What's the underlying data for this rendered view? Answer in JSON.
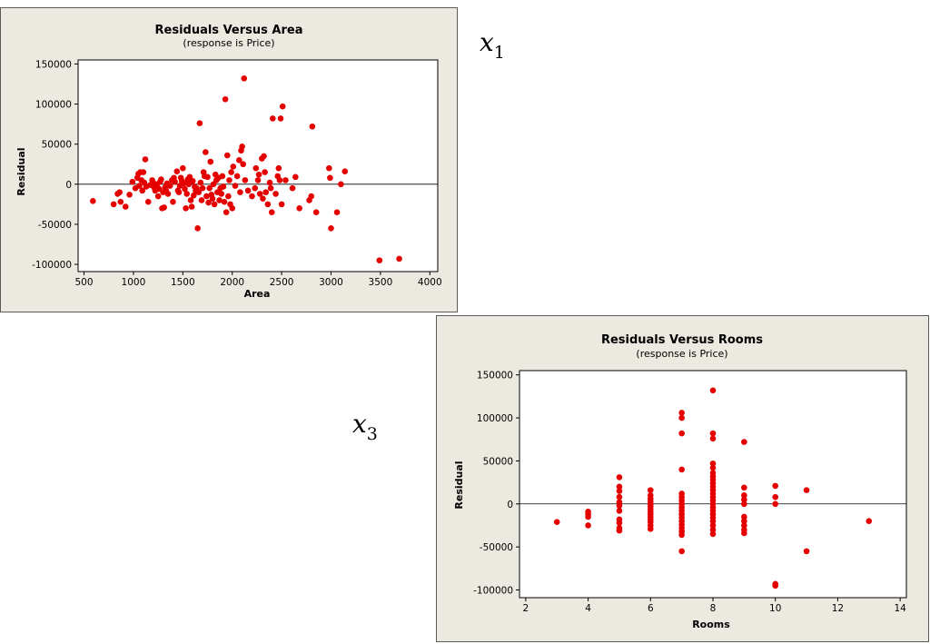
{
  "labels": {
    "x1_var": "x",
    "x1_sub": "1",
    "x3_var": "x",
    "x3_sub": "3"
  },
  "colors": {
    "point": "#e50000",
    "panel_bg": "#ece9e0",
    "plot_bg": "#ffffff"
  },
  "chart_data": [
    {
      "type": "scatter",
      "title": "Residuals Versus Area",
      "subtitle": "(response is Price)",
      "xlabel": "Area",
      "ylabel": "Residual",
      "xlim": [
        440,
        4080
      ],
      "ylim": [
        -109000,
        155000
      ],
      "xticks": [
        500,
        1000,
        1500,
        2000,
        2500,
        3000,
        3500,
        4000
      ],
      "yticks": [
        -100000,
        -50000,
        0,
        50000,
        100000,
        150000
      ],
      "reference_line_y": 0,
      "grid": false,
      "points": [
        [
          590,
          -21000
        ],
        [
          800,
          -25000
        ],
        [
          840,
          -12000
        ],
        [
          860,
          -10000
        ],
        [
          870,
          -22000
        ],
        [
          920,
          -28000
        ],
        [
          960,
          -13000
        ],
        [
          990,
          3000
        ],
        [
          1020,
          -5000
        ],
        [
          1040,
          8000
        ],
        [
          1050,
          13000
        ],
        [
          1060,
          -2000
        ],
        [
          1070,
          15000
        ],
        [
          1080,
          5000
        ],
        [
          1090,
          -8000
        ],
        [
          1100,
          15000
        ],
        [
          1110,
          2000
        ],
        [
          1120,
          31000
        ],
        [
          1130,
          -3000
        ],
        [
          1150,
          -22000
        ],
        [
          1170,
          -1000
        ],
        [
          1190,
          5000
        ],
        [
          1200,
          2000
        ],
        [
          1210,
          -4000
        ],
        [
          1220,
          -8000
        ],
        [
          1240,
          0
        ],
        [
          1250,
          -15000
        ],
        [
          1260,
          -6000
        ],
        [
          1270,
          3000
        ],
        [
          1280,
          6000
        ],
        [
          1290,
          -30000
        ],
        [
          1300,
          -10000
        ],
        [
          1310,
          -29000
        ],
        [
          1320,
          -4000
        ],
        [
          1330,
          -8000
        ],
        [
          1340,
          1000
        ],
        [
          1350,
          -12000
        ],
        [
          1370,
          -2000
        ],
        [
          1390,
          5000
        ],
        [
          1400,
          -22000
        ],
        [
          1410,
          8000
        ],
        [
          1420,
          3000
        ],
        [
          1440,
          16000
        ],
        [
          1450,
          -8000
        ],
        [
          1460,
          -10000
        ],
        [
          1470,
          -2000
        ],
        [
          1480,
          8000
        ],
        [
          1490,
          4000
        ],
        [
          1500,
          20000
        ],
        [
          1510,
          1000
        ],
        [
          1520,
          -6000
        ],
        [
          1530,
          -30000
        ],
        [
          1540,
          -12000
        ],
        [
          1550,
          6000
        ],
        [
          1560,
          0
        ],
        [
          1570,
          9000
        ],
        [
          1580,
          -20000
        ],
        [
          1590,
          -28000
        ],
        [
          1600,
          4000
        ],
        [
          1610,
          -14000
        ],
        [
          1620,
          -3000
        ],
        [
          1630,
          -8000
        ],
        [
          1640,
          -5000
        ],
        [
          1650,
          -55000
        ],
        [
          1660,
          -10000
        ],
        [
          1670,
          76000
        ],
        [
          1680,
          2000
        ],
        [
          1690,
          -20000
        ],
        [
          1700,
          -5000
        ],
        [
          1710,
          15000
        ],
        [
          1720,
          10000
        ],
        [
          1730,
          40000
        ],
        [
          1740,
          -15000
        ],
        [
          1750,
          9000
        ],
        [
          1760,
          -23000
        ],
        [
          1770,
          -5000
        ],
        [
          1780,
          28000
        ],
        [
          1790,
          -13000
        ],
        [
          1800,
          -18000
        ],
        [
          1810,
          0
        ],
        [
          1820,
          -25000
        ],
        [
          1830,
          12000
        ],
        [
          1840,
          5000
        ],
        [
          1850,
          -10000
        ],
        [
          1860,
          8000
        ],
        [
          1870,
          -20000
        ],
        [
          1880,
          -5000
        ],
        [
          1890,
          -12000
        ],
        [
          1900,
          10000
        ],
        [
          1910,
          -3000
        ],
        [
          1920,
          -22000
        ],
        [
          1930,
          106000
        ],
        [
          1940,
          -35000
        ],
        [
          1950,
          36000
        ],
        [
          1960,
          -15000
        ],
        [
          1970,
          5000
        ],
        [
          1980,
          -25000
        ],
        [
          1990,
          15000
        ],
        [
          2000,
          -30000
        ],
        [
          2010,
          22000
        ],
        [
          2030,
          -2000
        ],
        [
          2050,
          10000
        ],
        [
          2070,
          30000
        ],
        [
          2080,
          -10000
        ],
        [
          2090,
          42000
        ],
        [
          2100,
          47000
        ],
        [
          2110,
          25000
        ],
        [
          2120,
          132000
        ],
        [
          2130,
          5000
        ],
        [
          2160,
          -8000
        ],
        [
          2200,
          -15000
        ],
        [
          2230,
          -5000
        ],
        [
          2240,
          20000
        ],
        [
          2260,
          5000
        ],
        [
          2270,
          12000
        ],
        [
          2280,
          -12000
        ],
        [
          2300,
          32000
        ],
        [
          2310,
          -18000
        ],
        [
          2320,
          35000
        ],
        [
          2330,
          15000
        ],
        [
          2340,
          -10000
        ],
        [
          2360,
          -25000
        ],
        [
          2380,
          2000
        ],
        [
          2390,
          -5000
        ],
        [
          2400,
          -35000
        ],
        [
          2410,
          82000
        ],
        [
          2440,
          -12000
        ],
        [
          2460,
          10000
        ],
        [
          2470,
          20000
        ],
        [
          2480,
          5000
        ],
        [
          2490,
          82000
        ],
        [
          2500,
          -25000
        ],
        [
          2510,
          97000
        ],
        [
          2540,
          5000
        ],
        [
          2610,
          -5000
        ],
        [
          2640,
          9000
        ],
        [
          2680,
          -30000
        ],
        [
          2780,
          -20000
        ],
        [
          2800,
          -15000
        ],
        [
          2810,
          72000
        ],
        [
          2850,
          -35000
        ],
        [
          2980,
          20000
        ],
        [
          2990,
          8000
        ],
        [
          3000,
          -55000
        ],
        [
          3060,
          -35000
        ],
        [
          3100,
          0
        ],
        [
          3140,
          16000
        ],
        [
          3490,
          -95000
        ],
        [
          3690,
          -93000
        ]
      ]
    },
    {
      "type": "scatter",
      "title": "Residuals Versus Rooms",
      "subtitle": "(response is Price)",
      "xlabel": "Rooms",
      "ylabel": "Residual",
      "xlim": [
        1.8,
        14.2
      ],
      "ylim": [
        -109000,
        155000
      ],
      "xticks": [
        2,
        4,
        6,
        8,
        10,
        12,
        14
      ],
      "yticks": [
        -100000,
        -50000,
        0,
        50000,
        100000,
        150000
      ],
      "reference_line_y": 0,
      "grid": false,
      "points": [
        [
          3,
          -21000
        ],
        [
          4,
          -9000
        ],
        [
          4,
          -12000
        ],
        [
          4,
          -15000
        ],
        [
          4,
          -25000
        ],
        [
          5,
          31000
        ],
        [
          5,
          20000
        ],
        [
          5,
          15000
        ],
        [
          5,
          8000
        ],
        [
          5,
          2000
        ],
        [
          5,
          -2000
        ],
        [
          5,
          -8000
        ],
        [
          5,
          -18000
        ],
        [
          5,
          -22000
        ],
        [
          5,
          -28000
        ],
        [
          5,
          -31000
        ],
        [
          6,
          16000
        ],
        [
          6,
          10000
        ],
        [
          6,
          6000
        ],
        [
          6,
          3000
        ],
        [
          6,
          0
        ],
        [
          6,
          -3000
        ],
        [
          6,
          -6000
        ],
        [
          6,
          -9000
        ],
        [
          6,
          -12000
        ],
        [
          6,
          -15000
        ],
        [
          6,
          -18000
        ],
        [
          6,
          -21000
        ],
        [
          6,
          -25000
        ],
        [
          6,
          -29000
        ],
        [
          7,
          106000
        ],
        [
          7,
          100000
        ],
        [
          7,
          82000
        ],
        [
          7,
          40000
        ],
        [
          7,
          12000
        ],
        [
          7,
          8000
        ],
        [
          7,
          4000
        ],
        [
          7,
          0
        ],
        [
          7,
          -4000
        ],
        [
          7,
          -8000
        ],
        [
          7,
          -12000
        ],
        [
          7,
          -16000
        ],
        [
          7,
          -20000
        ],
        [
          7,
          -24000
        ],
        [
          7,
          -28000
        ],
        [
          7,
          -32000
        ],
        [
          7,
          -36000
        ],
        [
          7,
          -55000
        ],
        [
          8,
          132000
        ],
        [
          8,
          82000
        ],
        [
          8,
          76000
        ],
        [
          8,
          47000
        ],
        [
          8,
          42000
        ],
        [
          8,
          36000
        ],
        [
          8,
          32000
        ],
        [
          8,
          28000
        ],
        [
          8,
          24000
        ],
        [
          8,
          20000
        ],
        [
          8,
          16000
        ],
        [
          8,
          12000
        ],
        [
          8,
          8000
        ],
        [
          8,
          4000
        ],
        [
          8,
          0
        ],
        [
          8,
          -4000
        ],
        [
          8,
          -8000
        ],
        [
          8,
          -12000
        ],
        [
          8,
          -16000
        ],
        [
          8,
          -20000
        ],
        [
          8,
          -25000
        ],
        [
          8,
          -30000
        ],
        [
          8,
          -35000
        ],
        [
          9,
          72000
        ],
        [
          9,
          19000
        ],
        [
          9,
          10000
        ],
        [
          9,
          5000
        ],
        [
          9,
          0
        ],
        [
          9,
          -15000
        ],
        [
          9,
          -20000
        ],
        [
          9,
          -25000
        ],
        [
          9,
          -30000
        ],
        [
          9,
          -34000
        ],
        [
          10,
          21000
        ],
        [
          10,
          8000
        ],
        [
          10,
          0
        ],
        [
          10,
          -93000
        ],
        [
          10,
          -95000
        ],
        [
          11,
          16000
        ],
        [
          11,
          -55000
        ],
        [
          13,
          -20000
        ]
      ]
    }
  ]
}
